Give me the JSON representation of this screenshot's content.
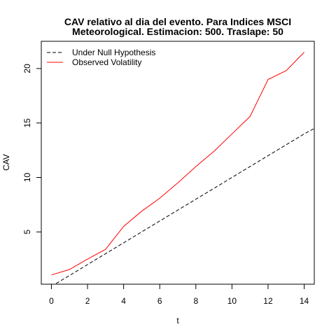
{
  "chart_data": {
    "type": "line",
    "title": [
      "CAV relativo al dia del evento. Para Indices MSCI",
      "Meteorological. Estimacion: 500. Traslape: 50"
    ],
    "xlabel": "t",
    "ylabel": "CAV",
    "xlim": [
      -0.56,
      14.56
    ],
    "ylim": [
      0.2,
      22.5
    ],
    "x_ticks": [
      0,
      2,
      4,
      6,
      8,
      10,
      12,
      14
    ],
    "y_ticks": [
      5,
      10,
      15,
      20
    ],
    "grid": false,
    "legend_position": "top-left",
    "series": [
      {
        "name": "Under Null Hypothesis",
        "color": "#000000",
        "line_style": "dashed",
        "x": [
          0,
          1,
          2,
          3,
          4,
          5,
          6,
          7,
          8,
          9,
          10,
          11,
          12,
          13,
          14,
          14.56
        ],
        "y": [
          0.0,
          1.0,
          2.0,
          3.0,
          4.0,
          5.0,
          6.0,
          7.0,
          8.0,
          9.0,
          10.0,
          11.0,
          12.0,
          13.0,
          14.0,
          14.5
        ]
      },
      {
        "name": "Observed Volatility",
        "color": "#ff0000",
        "line_style": "solid",
        "x": [
          0,
          1,
          2,
          3,
          4,
          5,
          6,
          7,
          8,
          9,
          10,
          11,
          12,
          13,
          14
        ],
        "y": [
          1.05,
          1.55,
          2.5,
          3.4,
          5.5,
          6.9,
          8.1,
          9.5,
          11.0,
          12.4,
          14.0,
          15.6,
          19.0,
          19.8,
          21.5
        ]
      }
    ]
  }
}
